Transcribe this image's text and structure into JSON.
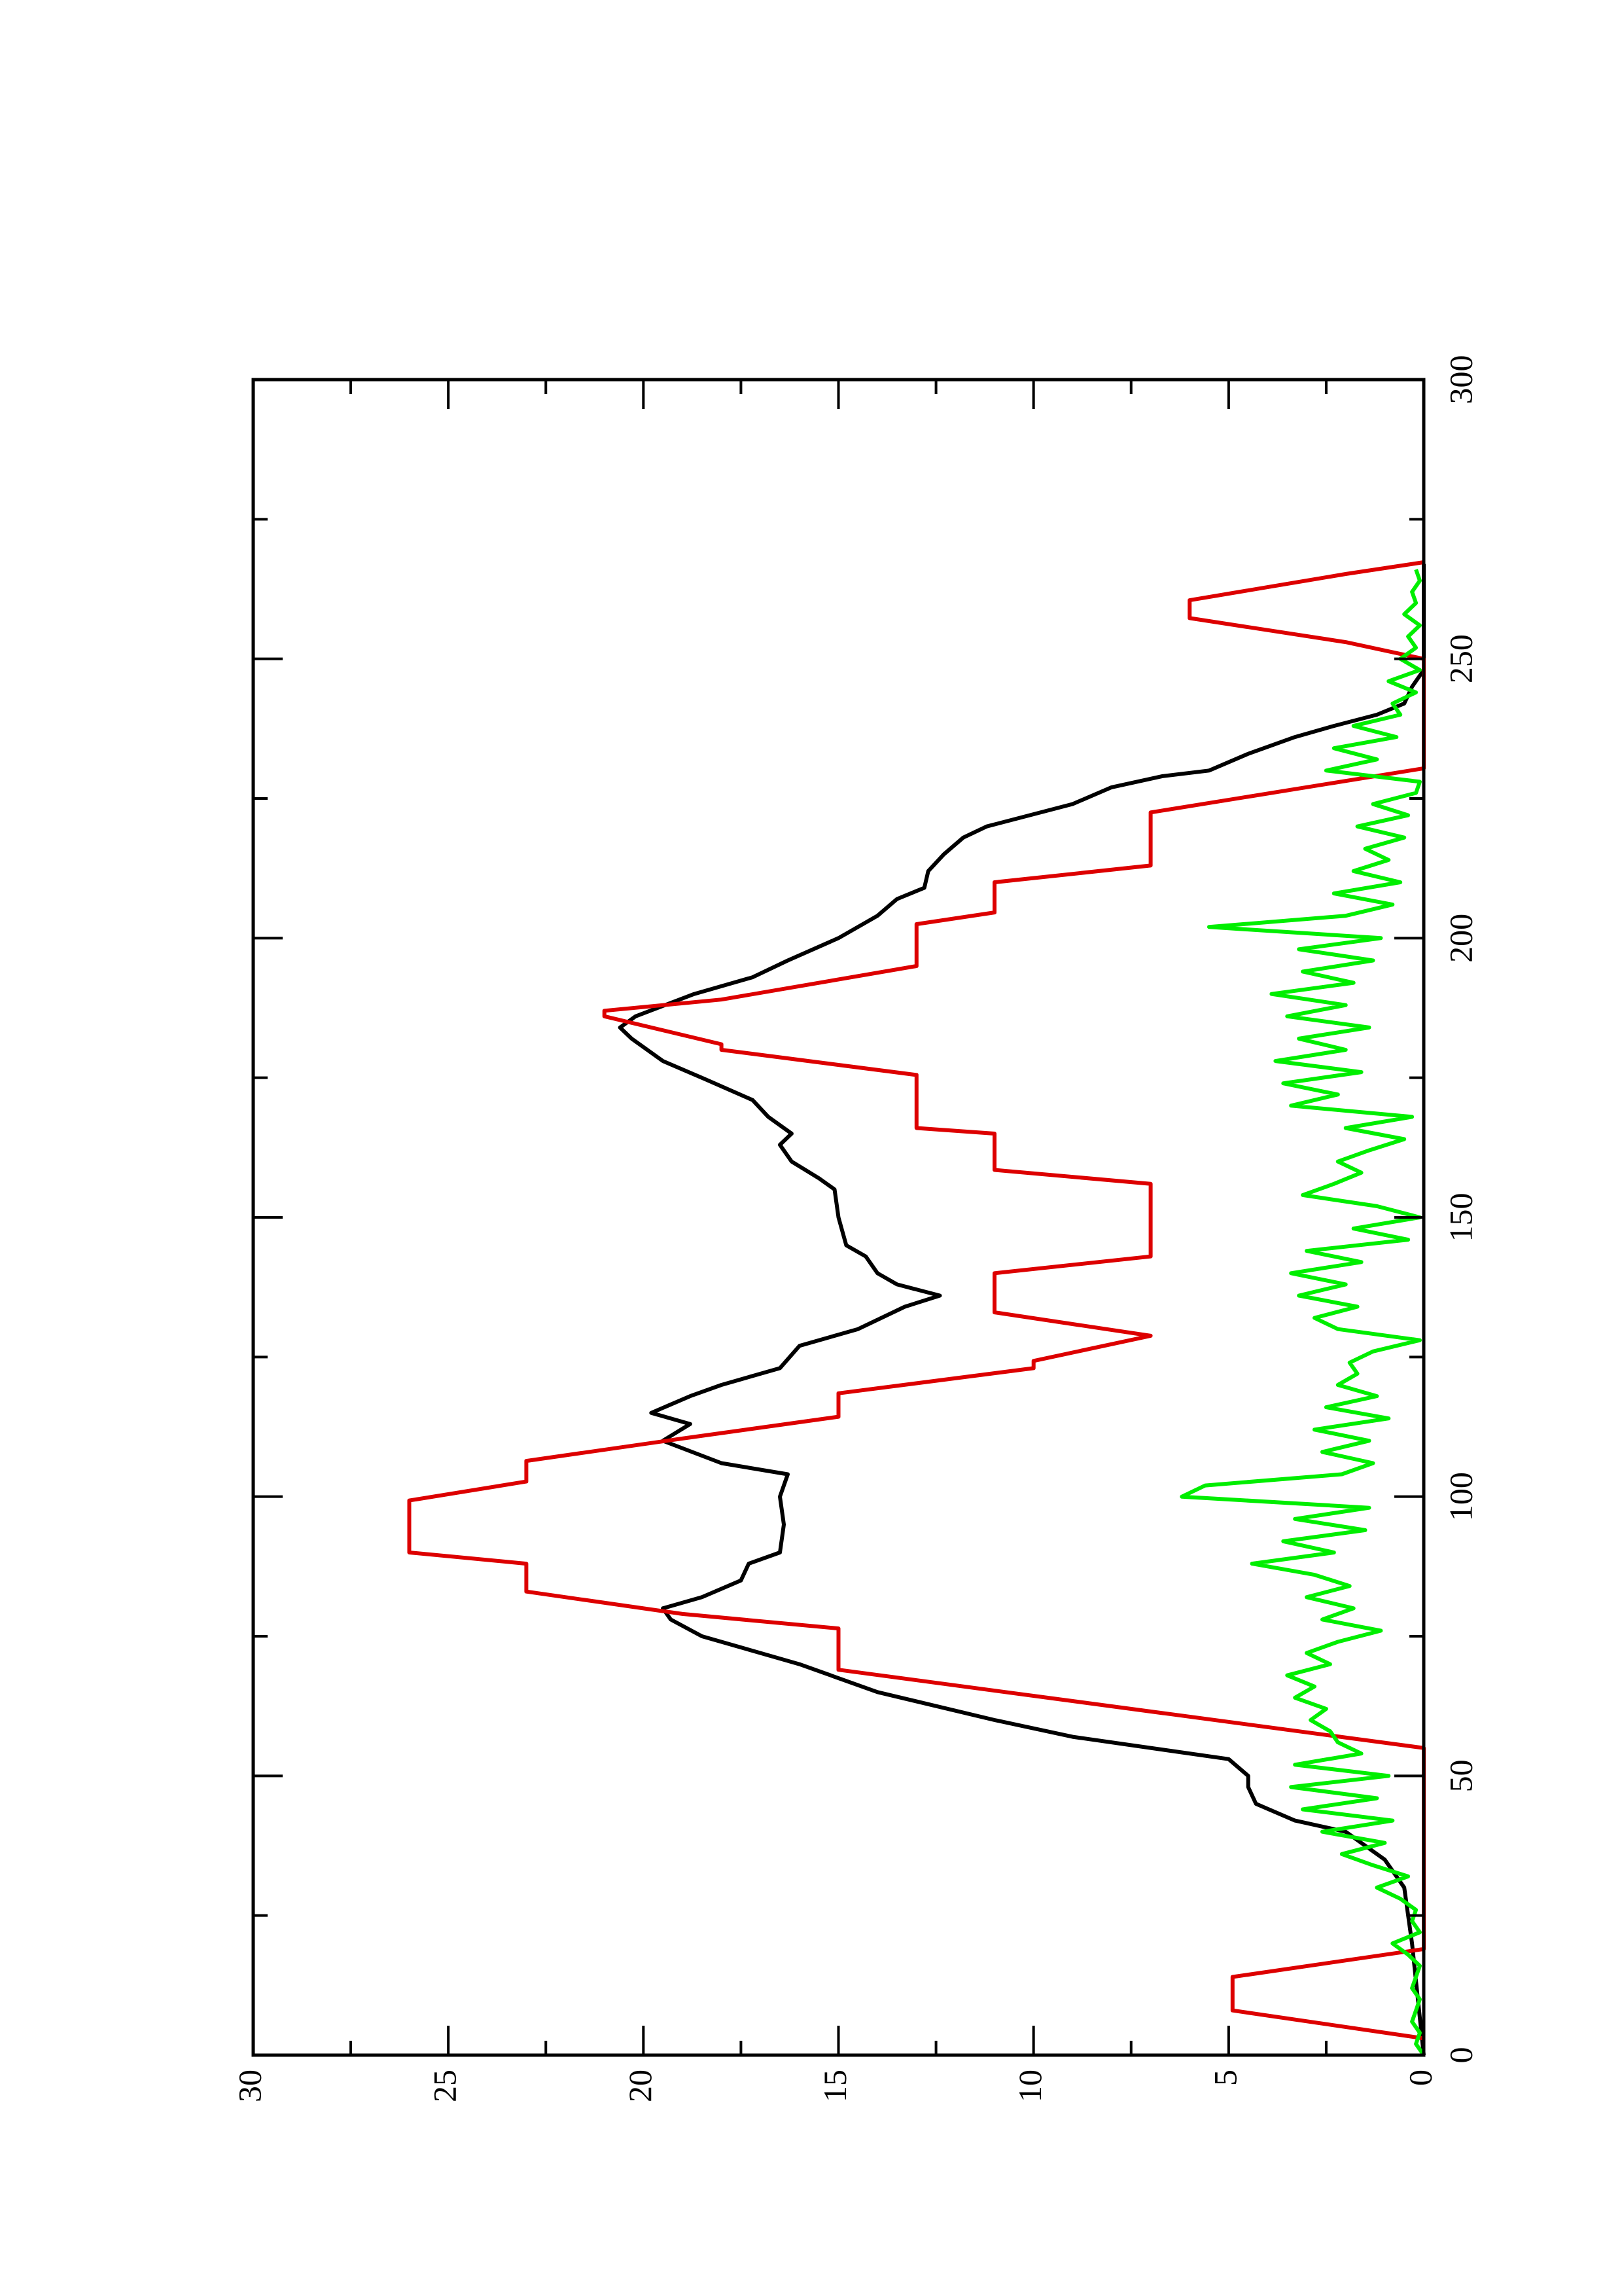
{
  "chart_data": {
    "type": "line",
    "xlim": [
      0,
      300
    ],
    "ylim": [
      0,
      30
    ],
    "xticks": [
      0,
      50,
      100,
      150,
      200,
      250,
      300
    ],
    "yticks": [
      0,
      5,
      10,
      15,
      20,
      25,
      30
    ],
    "xminorticks": [
      25,
      75,
      125,
      175,
      225,
      275
    ],
    "yminorticks": [
      2.5,
      7.5,
      12.5,
      17.5,
      22.5,
      27.5
    ],
    "series": [
      {
        "color": "#000000",
        "x": [
          0,
          20,
          30,
          35,
          40,
          42,
          45,
          48,
          50,
          53,
          57,
          60,
          65,
          70,
          75,
          78,
          80,
          82,
          85,
          88,
          90,
          95,
          100,
          104,
          106,
          110,
          113,
          115,
          118,
          120,
          123,
          127,
          130,
          134,
          136,
          138,
          140,
          143,
          145,
          150,
          155,
          157,
          160,
          163,
          165,
          168,
          171,
          175,
          178,
          182,
          184,
          186,
          190,
          193,
          196,
          200,
          204,
          207,
          209,
          212,
          215,
          218,
          220,
          224,
          227,
          229,
          230,
          233,
          236,
          238,
          240,
          242,
          245,
          248,
          267
        ],
        "values": [
          0,
          0.3,
          0.5,
          1,
          2,
          3.3,
          4.3,
          4.5,
          4.5,
          5,
          9,
          11,
          14,
          16,
          18.5,
          19.3,
          19.5,
          18.5,
          17.5,
          17.3,
          16.5,
          16.4,
          16.5,
          16.3,
          18,
          19.5,
          18.8,
          19.8,
          18.8,
          18,
          16.5,
          16,
          14.5,
          13.3,
          12.4,
          13.5,
          14,
          14.3,
          14.8,
          15,
          15.1,
          15.5,
          16.2,
          16.5,
          16.2,
          16.8,
          17.2,
          18.5,
          19.5,
          20.3,
          20.6,
          20.2,
          18.7,
          17.2,
          16.3,
          15,
          14,
          13.5,
          12.8,
          12.7,
          12.3,
          11.8,
          11.2,
          9,
          8,
          6.7,
          5.5,
          4.5,
          3.3,
          2.3,
          1.2,
          0.5,
          0.3,
          0,
          0
        ]
      },
      {
        "color": "#dd0000",
        "x": [
          3,
          8,
          14,
          19,
          55,
          69,
          76.4,
          79,
          83,
          88,
          90,
          99.3,
          102.7,
          106.4,
          110.4,
          114.3,
          118.5,
          123,
          124.3,
          128.8,
          133,
          140,
          143,
          156,
          158.5,
          165,
          166,
          175.5,
          180,
          181,
          186,
          187,
          189,
          195,
          202.5,
          204.6,
          210,
          213,
          222.5,
          230.4,
          250,
          253,
          257.3,
          260.5,
          265.2,
          267.3
        ],
        "values": [
          0,
          4.9,
          4.9,
          0,
          0,
          15,
          15,
          19,
          23,
          23,
          26,
          26,
          23,
          23,
          19,
          15,
          15,
          10,
          10,
          7,
          11,
          11,
          7,
          7,
          11,
          11,
          13,
          13,
          18,
          18,
          21,
          21,
          18,
          13,
          13,
          11,
          11,
          7,
          7,
          0,
          0,
          2,
          6,
          6,
          2,
          0
        ]
      },
      {
        "color": "#00ee00",
        "x": [
          0,
          2,
          4,
          6,
          8,
          10,
          12,
          14,
          16,
          18,
          20,
          22,
          24,
          26,
          28,
          30,
          32,
          34,
          36,
          38,
          40,
          42,
          44,
          46,
          48,
          50,
          52,
          54,
          56,
          58,
          60,
          62,
          64,
          66,
          68,
          70,
          72,
          74,
          76,
          78,
          80,
          82,
          84,
          86,
          88,
          90,
          92,
          94,
          96,
          98,
          100,
          102,
          104,
          106,
          108,
          110,
          112,
          114,
          116,
          118,
          120,
          122,
          124,
          126,
          128,
          130,
          132,
          134,
          136,
          138,
          140,
          142,
          144,
          146,
          148,
          150,
          152,
          154,
          156,
          158,
          160,
          162,
          164,
          166,
          168,
          170,
          172,
          174,
          176,
          178,
          180,
          182,
          184,
          186,
          188,
          190,
          192,
          194,
          196,
          198,
          200,
          202,
          204,
          206,
          208,
          210,
          212,
          214,
          216,
          218,
          220,
          222,
          224,
          226,
          228,
          230,
          232,
          234,
          236,
          238,
          240,
          242,
          244,
          246,
          248,
          250,
          252,
          254,
          256,
          258,
          260,
          262,
          264,
          266
        ],
        "values": [
          0,
          0.2,
          0.1,
          0.3,
          0.2,
          0.1,
          0.3,
          0.2,
          0.1,
          0.4,
          0.8,
          0.1,
          0.3,
          0.2,
          0.6,
          1.2,
          0.4,
          1.3,
          2.1,
          1.0,
          2.6,
          0.8,
          3.1,
          1.2,
          3.4,
          0.9,
          3.3,
          1.6,
          2.2,
          2.4,
          2.9,
          2.5,
          3.3,
          2.8,
          3.5,
          2.4,
          3.0,
          2.2,
          1.1,
          2.6,
          1.8,
          3.0,
          1.9,
          2.8,
          4.4,
          2.3,
          3.6,
          1.5,
          3.3,
          1.4,
          6.2,
          5.6,
          2.1,
          1.3,
          2.6,
          1.4,
          2.8,
          0.9,
          2.5,
          1.2,
          2.2,
          1.7,
          1.9,
          1.3,
          0.1,
          2.2,
          2.8,
          1.7,
          3.2,
          2.0,
          3.4,
          1.6,
          3.0,
          0.4,
          1.8,
          0.1,
          1.2,
          3.1,
          2.3,
          1.6,
          2.2,
          1.4,
          0.5,
          2.0,
          0.3,
          3.4,
          2.2,
          3.6,
          1.6,
          3.8,
          2.0,
          3.2,
          1.4,
          3.5,
          2.0,
          3.9,
          1.8,
          3.1,
          1.3,
          3.2,
          1.1,
          5.5,
          2.0,
          0.8,
          2.3,
          0.6,
          1.8,
          0.9,
          1.5,
          0.5,
          1.7,
          0.4,
          1.3,
          0.2,
          0.1,
          2.5,
          1.2,
          2.3,
          0.7,
          1.8,
          0.6,
          0.8,
          0.2,
          0.9,
          0.1,
          0.6,
          0.2,
          0.4,
          0.1,
          0.5,
          0.2,
          0.3,
          0.1,
          0.2
        ]
      }
    ]
  }
}
